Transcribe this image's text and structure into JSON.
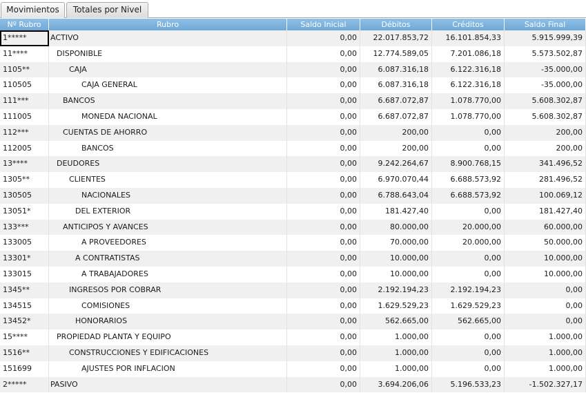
{
  "tabs": [
    {
      "label": "Movimientos",
      "active": false
    },
    {
      "label": "Totales por Nivel",
      "active": true
    }
  ],
  "columns": [
    "Nº Rubro",
    "Rubro",
    "Saldo Inicial",
    "Débitos",
    "Créditos",
    "Saldo Final"
  ],
  "rows": [
    {
      "code": "1*****",
      "name": "ACTIVO",
      "level": 0,
      "inicial": "0,00",
      "debitos": "22.017.853,72",
      "creditos": "16.101.854,33",
      "final": "5.915.999,39"
    },
    {
      "code": "11****",
      "name": "DISPONIBLE",
      "level": 1,
      "inicial": "0,00",
      "debitos": "12.774.589,05",
      "creditos": "7.201.086,18",
      "final": "5.573.502,87"
    },
    {
      "code": "1105**",
      "name": "CAJA",
      "level": 3,
      "inicial": "0,00",
      "debitos": "6.087.316,18",
      "creditos": "6.122.316,18",
      "final": "-35.000,00"
    },
    {
      "code": "110505",
      "name": "CAJA GENERAL",
      "level": 5,
      "inicial": "0,00",
      "debitos": "6.087.316,18",
      "creditos": "6.122.316,18",
      "final": "-35.000,00"
    },
    {
      "code": "111***",
      "name": "BANCOS",
      "level": 2,
      "inicial": "0,00",
      "debitos": "6.687.072,87",
      "creditos": "1.078.770,00",
      "final": "5.608.302,87"
    },
    {
      "code": "111005",
      "name": "MONEDA NACIONAL",
      "level": 5,
      "inicial": "0,00",
      "debitos": "6.687.072,87",
      "creditos": "1.078.770,00",
      "final": "5.608.302,87"
    },
    {
      "code": "112***",
      "name": "CUENTAS DE AHORRO",
      "level": 2,
      "inicial": "0,00",
      "debitos": "200,00",
      "creditos": "0,00",
      "final": "200,00"
    },
    {
      "code": "112005",
      "name": "BANCOS",
      "level": 5,
      "inicial": "0,00",
      "debitos": "200,00",
      "creditos": "0,00",
      "final": "200,00"
    },
    {
      "code": "13****",
      "name": "DEUDORES",
      "level": 1,
      "inicial": "0,00",
      "debitos": "9.242.264,67",
      "creditos": "8.900.768,15",
      "final": "341.496,52"
    },
    {
      "code": "1305**",
      "name": "CLIENTES",
      "level": 3,
      "inicial": "0,00",
      "debitos": "6.970.070,44",
      "creditos": "6.688.573,92",
      "final": "281.496,52"
    },
    {
      "code": "130505",
      "name": "NACIONALES",
      "level": 5,
      "inicial": "0,00",
      "debitos": "6.788.643,04",
      "creditos": "6.688.573,92",
      "final": "100.069,12"
    },
    {
      "code": "13051*",
      "name": "DEL EXTERIOR",
      "level": 4,
      "inicial": "0,00",
      "debitos": "181.427,40",
      "creditos": "0,00",
      "final": "181.427,40"
    },
    {
      "code": "133***",
      "name": "ANTICIPOS Y AVANCES",
      "level": 2,
      "inicial": "0,00",
      "debitos": "80.000,00",
      "creditos": "20.000,00",
      "final": "60.000,00"
    },
    {
      "code": "133005",
      "name": "A PROVEEDORES",
      "level": 5,
      "inicial": "0,00",
      "debitos": "70.000,00",
      "creditos": "20.000,00",
      "final": "50.000,00"
    },
    {
      "code": "13301*",
      "name": "A CONTRATISTAS",
      "level": 4,
      "inicial": "0,00",
      "debitos": "10.000,00",
      "creditos": "0,00",
      "final": "10.000,00"
    },
    {
      "code": "133015",
      "name": "A TRABAJADORES",
      "level": 5,
      "inicial": "0,00",
      "debitos": "10.000,00",
      "creditos": "0,00",
      "final": "10.000,00"
    },
    {
      "code": "1345**",
      "name": "INGRESOS POR COBRAR",
      "level": 3,
      "inicial": "0,00",
      "debitos": "2.192.194,23",
      "creditos": "2.192.194,23",
      "final": "0,00"
    },
    {
      "code": "134515",
      "name": "COMISIONES",
      "level": 5,
      "inicial": "0,00",
      "debitos": "1.629.529,23",
      "creditos": "1.629.529,23",
      "final": "0,00"
    },
    {
      "code": "13452*",
      "name": "HONORARIOS",
      "level": 4,
      "inicial": "0,00",
      "debitos": "562.665,00",
      "creditos": "562.665,00",
      "final": "0,00"
    },
    {
      "code": "15****",
      "name": "PROPIEDAD PLANTA Y EQUIPO",
      "level": 1,
      "inicial": "0,00",
      "debitos": "1.000,00",
      "creditos": "0,00",
      "final": "1.000,00"
    },
    {
      "code": "1516**",
      "name": "CONSTRUCCIONES Y EDIFICACIONES",
      "level": 3,
      "inicial": "0,00",
      "debitos": "1.000,00",
      "creditos": "0,00",
      "final": "1.000,00"
    },
    {
      "code": "151699",
      "name": "AJUSTES POR INFLACION",
      "level": 5,
      "inicial": "0,00",
      "debitos": "1.000,00",
      "creditos": "0,00",
      "final": "1.000,00"
    },
    {
      "code": "2*****",
      "name": "PASIVO",
      "level": 0,
      "inicial": "0,00",
      "debitos": "3.694.206,06",
      "creditos": "5.196.533,23",
      "final": "-1.502.327,17"
    }
  ]
}
